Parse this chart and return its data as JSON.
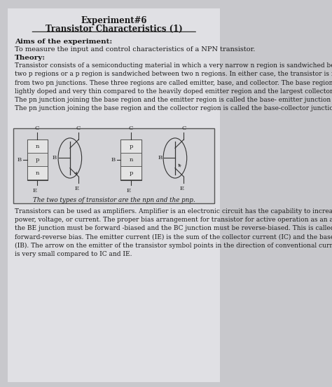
{
  "background_color": "#c8c8cc",
  "page_color": "#e0e0e4",
  "title_line1": "Experiment#6",
  "title_line2": "Transistor Characteristics (1)",
  "aims_header": "Aims of the experiment:",
  "aims_text": "To measure the input and control characteristics of a NPN transistor.",
  "theory_header": "Theory:",
  "theory_paragraph": "Transistor consists of a semiconducting material in which a very narrow n region is sandwiched between\ntwo p regions or a p region is sandwiched between two n regions. In either case, the transistor is formed\nfrom two pn junctions. These three regions are called emitter, base, and collector. The base region is\nlightly doped and very thin compared to the heavily doped emitter region and the largest collector region.\nThe pn junction joining the base region and the emitter region is called the base- emitter junction (BE).\nThe pn junction joining the base region and the collector region is called the base-collector junction (BC).",
  "caption": "The two types of transistor are the npn and the pnp.",
  "bottom_paragraph": "Transistors can be used as amplifiers. Amplifier is an electronic circuit has the capability to increase\npower, voltage, or current. The proper bias arrangement for transistor for active operation as an amplifier:\nthe BE junction must be forward -biased and the BC junction must be reverse-biased. This is called\nforward-reverse bias. The emitter current (IE) is the sum of the collector current (IC) and the base current\n(IB). The arrow on the emitter of the transistor symbol points in the direction of conventional current. IB\nis very small compared to IC and IE."
}
